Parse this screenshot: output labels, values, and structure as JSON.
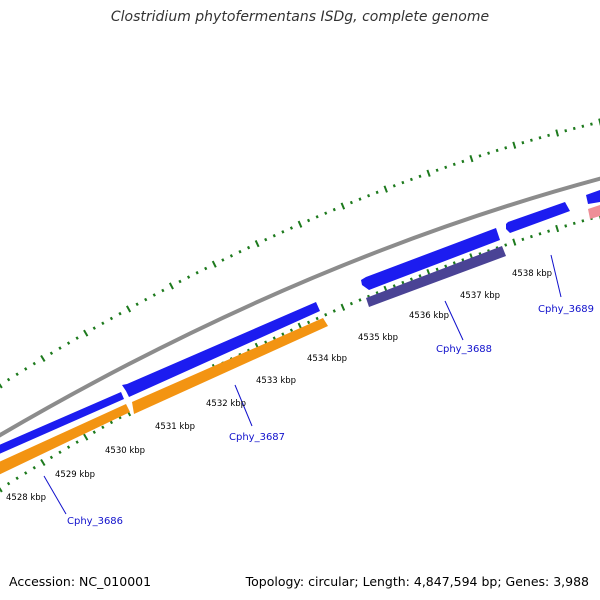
{
  "title": "Clostridium phytofermentans ISDg, complete genome",
  "accession_text": "Accession: NC_010001",
  "summary_text": "Topology: circular; Length: 4,847,594 bp; Genes: 3,988",
  "colors": {
    "backbone": "#8c8c8c",
    "gene_forward": "#1c1cf0",
    "gene_orange": "#f39412",
    "gene_dark": "#4a4395",
    "gene_pink": "#ee8f97",
    "ticks": "#1d7a1d",
    "gene_label": "#1111cc",
    "pos_label": "#000000"
  },
  "position_labels": [
    "4528 kbp",
    "4529 kbp",
    "4530 kbp",
    "4531 kbp",
    "4532 kbp",
    "4533 kbp",
    "4534 kbp",
    "4535 kbp",
    "4536 kbp",
    "4537 kbp",
    "4538 kbp"
  ],
  "gene_labels": [
    "Cphy_3686",
    "Cphy_3687",
    "Cphy_3688",
    "Cphy_3689"
  ]
}
